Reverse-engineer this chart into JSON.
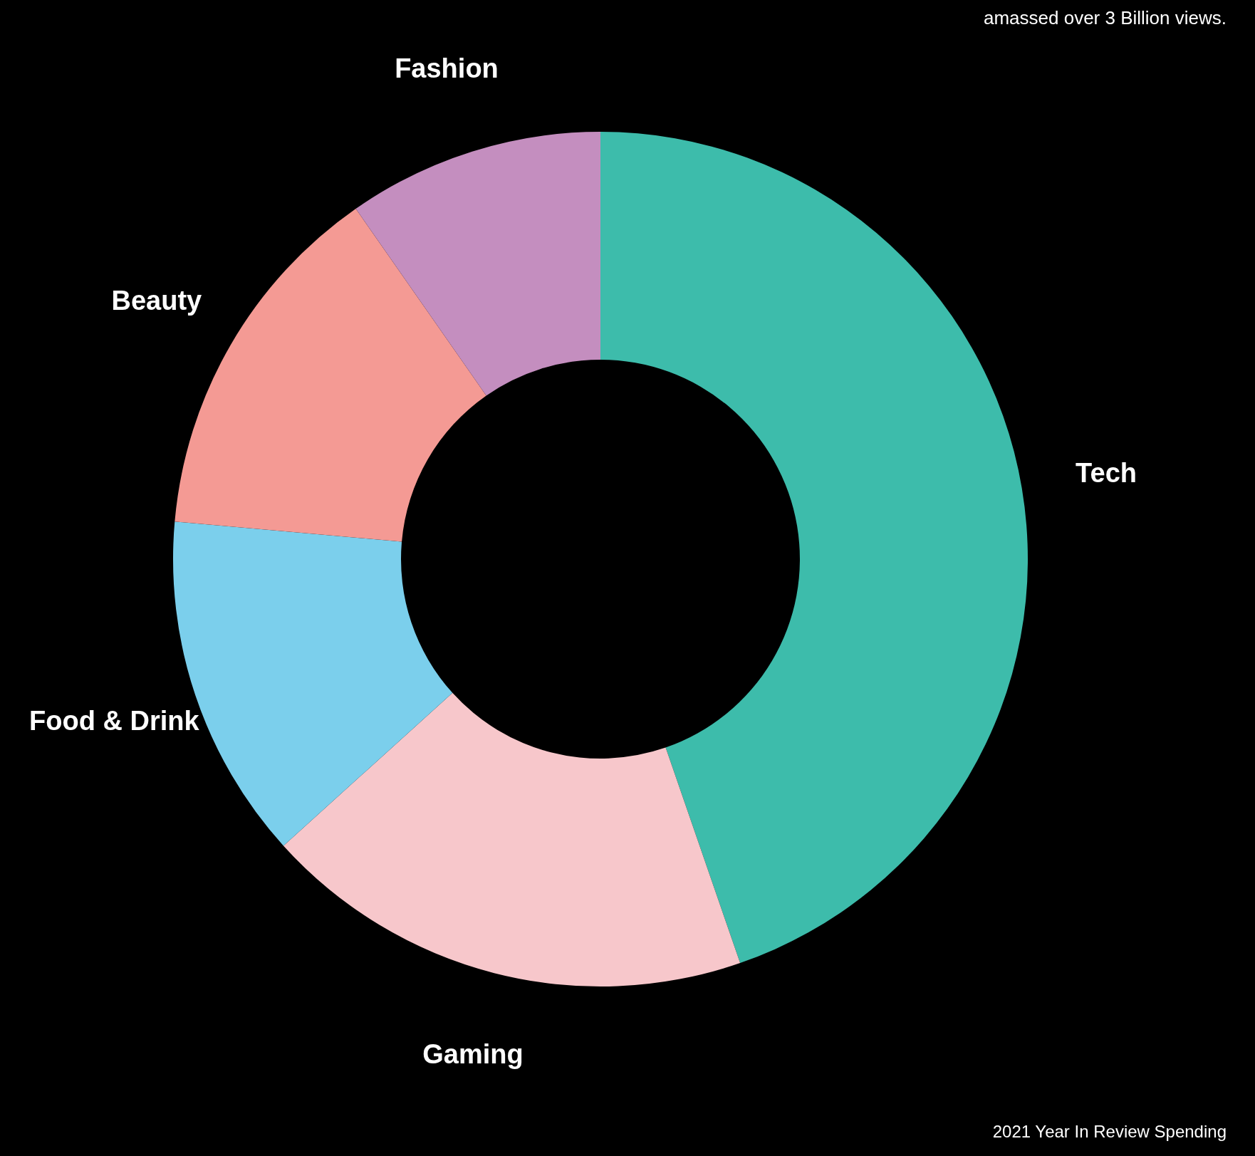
{
  "chart_data": {
    "type": "donut",
    "categories": [
      "Tech",
      "Gaming",
      "Food &  Drink",
      "Beauty",
      "Fashion"
    ],
    "values": [
      44.7,
      18.6,
      13.1,
      13.9,
      9.7
    ],
    "colors": [
      "#3dbcab",
      "#f7c7cb",
      "#7bcfec",
      "#f49a94",
      "#c48ebf"
    ],
    "annotations": [
      "amassed over 3 Billion views.",
      "2021 Year In Review Spending"
    ]
  }
}
